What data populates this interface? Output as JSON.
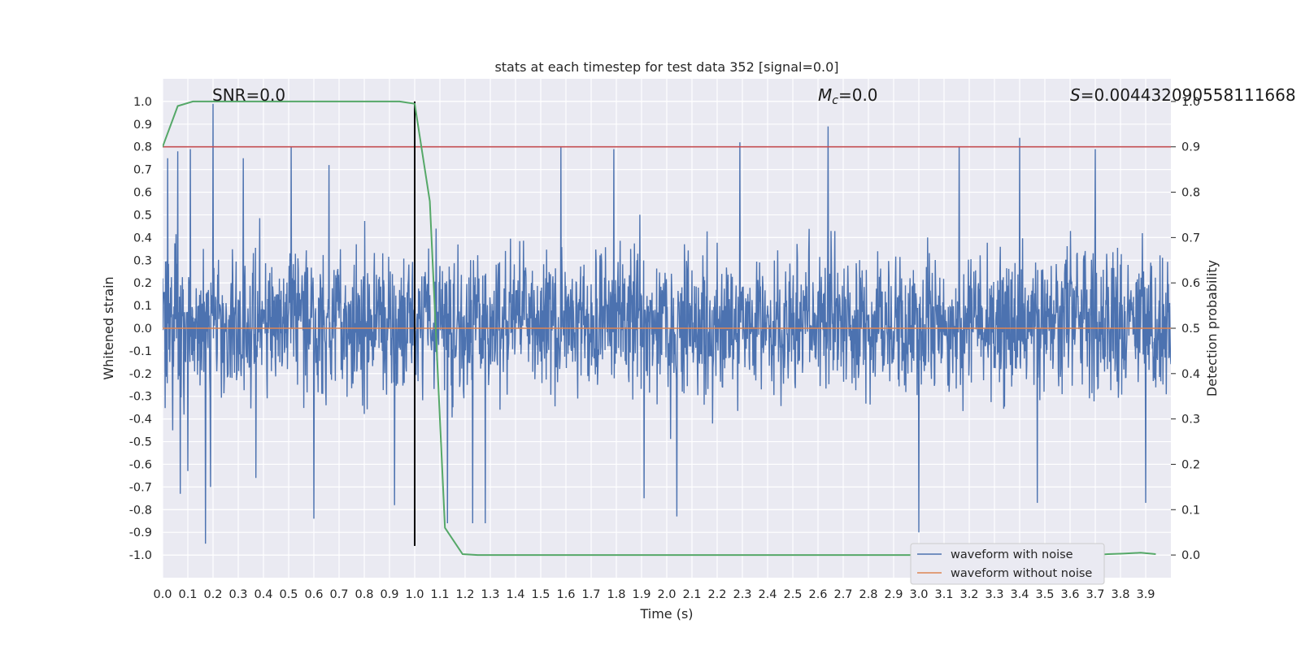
{
  "chart_data": {
    "type": "line",
    "title": "stats at each timestep for test data 352 [signal=0.0]",
    "xlabel": "Time (s)",
    "ylabel": "Whitened strain",
    "y2label": "Detection probability",
    "xlim": [
      0.0,
      4.0
    ],
    "ylim": [
      -1.1,
      1.1
    ],
    "y2lim": [
      -0.05,
      1.05
    ],
    "xticks": [
      "0.0",
      "0.1",
      "0.2",
      "0.3",
      "0.4",
      "0.5",
      "0.6",
      "0.7",
      "0.8",
      "0.9",
      "1.0",
      "1.1",
      "1.2",
      "1.3",
      "1.4",
      "1.5",
      "1.6",
      "1.7",
      "1.8",
      "1.9",
      "2.0",
      "2.1",
      "2.2",
      "2.3",
      "2.4",
      "2.5",
      "2.6",
      "2.7",
      "2.8",
      "2.9",
      "3.0",
      "3.1",
      "3.2",
      "3.3",
      "3.4",
      "3.5",
      "3.6",
      "3.7",
      "3.8",
      "3.9"
    ],
    "yticks": [
      "1.0",
      "0.9",
      "0.8",
      "0.7",
      "0.6",
      "0.5",
      "0.4",
      "0.3",
      "0.2",
      "0.1",
      "0.0",
      "-0.1",
      "-0.2",
      "-0.3",
      "-0.4",
      "-0.5",
      "-0.6",
      "-0.7",
      "-0.8",
      "-0.9",
      "-1.0"
    ],
    "y2ticks": [
      "1.0",
      "0.9",
      "0.8",
      "0.7",
      "0.6",
      "0.5",
      "0.4",
      "0.3",
      "0.2",
      "0.1",
      "0.0"
    ],
    "grid": true,
    "legend_position": "bottom-right",
    "annotations": {
      "snr": "SNR=0.0",
      "mc_symbol": "M",
      "mc_subscript": "c",
      "mc_value": "=0.0",
      "s_symbol": "S",
      "s_value": "=0.004432090558111668"
    },
    "series": [
      {
        "name": "waveform with noise",
        "color": "#4c72b0",
        "axis": "left",
        "description": "whitened noise, values mostly within -0.6..0.7",
        "spikes": [
          {
            "x": 0.02,
            "y": 0.75
          },
          {
            "x": 0.04,
            "y": -0.45
          },
          {
            "x": 0.06,
            "y": 0.78
          },
          {
            "x": 0.07,
            "y": -0.73
          },
          {
            "x": 0.11,
            "y": 0.79
          },
          {
            "x": 0.1,
            "y": -0.63
          },
          {
            "x": 0.17,
            "y": -0.95
          },
          {
            "x": 0.2,
            "y": 0.99
          },
          {
            "x": 0.19,
            "y": -0.7
          },
          {
            "x": 0.32,
            "y": 0.75
          },
          {
            "x": 0.37,
            "y": -0.66
          },
          {
            "x": 0.51,
            "y": 0.8
          },
          {
            "x": 0.6,
            "y": -0.84
          },
          {
            "x": 0.66,
            "y": 0.72
          },
          {
            "x": 0.92,
            "y": -0.78
          },
          {
            "x": 1.13,
            "y": -0.86
          },
          {
            "x": 1.23,
            "y": -0.86
          },
          {
            "x": 1.28,
            "y": -0.86
          },
          {
            "x": 1.58,
            "y": 0.8
          },
          {
            "x": 1.79,
            "y": 0.79
          },
          {
            "x": 1.91,
            "y": -0.75
          },
          {
            "x": 2.04,
            "y": -0.83
          },
          {
            "x": 2.29,
            "y": 0.82
          },
          {
            "x": 2.64,
            "y": 0.89
          },
          {
            "x": 3.0,
            "y": -0.9
          },
          {
            "x": 3.16,
            "y": 0.8
          },
          {
            "x": 3.4,
            "y": 0.84
          },
          {
            "x": 3.47,
            "y": -0.77
          },
          {
            "x": 3.7,
            "y": 0.79
          },
          {
            "x": 3.9,
            "y": -0.77
          }
        ]
      },
      {
        "name": "waveform without noise",
        "color": "#dd8452",
        "axis": "left",
        "x": [
          0.0,
          4.0
        ],
        "y": [
          0.0,
          0.0
        ]
      },
      {
        "name": "detection probability",
        "color": "#55a868",
        "axis": "right",
        "x": [
          0.0,
          0.06,
          0.12,
          0.19,
          0.25,
          0.31,
          0.38,
          0.44,
          0.5,
          0.56,
          0.62,
          0.69,
          0.75,
          0.81,
          0.88,
          0.94,
          1.0,
          1.06,
          1.12,
          1.19,
          1.25,
          1.5,
          2.0,
          2.5,
          3.0,
          3.5,
          3.7,
          3.75,
          3.81,
          3.88,
          3.94
        ],
        "y": [
          0.9,
          0.99,
          1.0,
          1.0,
          1.0,
          1.0,
          1.0,
          1.0,
          1.0,
          1.0,
          1.0,
          1.0,
          1.0,
          1.0,
          1.0,
          1.0,
          0.995,
          0.78,
          0.06,
          0.002,
          0.0,
          0.0,
          0.0,
          0.0,
          0.0,
          0.0,
          0.0,
          0.002,
          0.003,
          0.005,
          0.002
        ]
      }
    ],
    "threshold": {
      "y2": 0.9,
      "color": "#c44e52"
    },
    "event_marker": {
      "x": 1.0,
      "y_range": [
        -0.96,
        1.0
      ],
      "color": "#000000"
    },
    "colors": {
      "plot_bg": "#eaeaf2",
      "grid": "#ffffff"
    }
  }
}
